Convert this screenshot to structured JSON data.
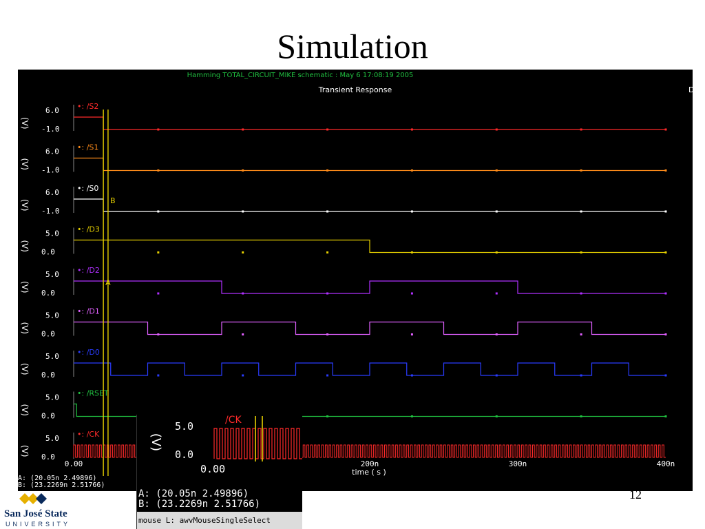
{
  "slide": {
    "title": "Simulation",
    "page_number": "12",
    "logo_name": "San José State",
    "logo_sub": "UNIVERSITY"
  },
  "window": {
    "header": "Hamming TOTAL_CIRCUIT_MIKE schematic : May  6 17:08:19 2005",
    "subtitle": "Transient Response",
    "xlabel": "time ( s )",
    "xticks": [
      "0.00",
      "200n",
      "300n",
      "400n"
    ],
    "ylabel": "(V)",
    "cursor_a_label": "A",
    "cursor_b_label": "B",
    "cursor_a": "A: (20.05n 2.49896)",
    "cursor_b": "B: (23.2269n 2.51766)",
    "edge_glyph": "D"
  },
  "zoom": {
    "ytick_top": "5.0",
    "ytick_bottom": "0.0",
    "xtick": "0.00",
    "ylabel": "(V)",
    "signal": "/CK",
    "cursor_a": "A: (20.05n 2.49896)",
    "cursor_b": "B: (23.2269n 2.51766)",
    "status": "mouse L: awvMouseSingleSelect"
  },
  "colors": {
    "S2": "#ff2a2a",
    "S1": "#ff8c1a",
    "S0": "#ffffff",
    "D3": "#e6d000",
    "D2": "#b030ff",
    "D1": "#e060ff",
    "D0": "#2a3cff",
    "RSET": "#20c040",
    "CK": "#ff2a2a",
    "cursor": "#e6d000"
  },
  "chart_data": {
    "type": "line",
    "title": "Transient Response",
    "xlabel": "time ( s )",
    "ylabel": "(V)",
    "xlim": [
      0,
      400
    ],
    "x_unit": "ns",
    "series": [
      {
        "name": "/S2",
        "ylim": [
          -1.0,
          6.0
        ],
        "yticks": [
          "6.0",
          "-1.0"
        ],
        "hi": 6.0,
        "lo": 0.0,
        "segments": [
          [
            0,
            20,
            1
          ],
          [
            20,
            400,
            0
          ]
        ]
      },
      {
        "name": "/S1",
        "ylim": [
          -1.0,
          6.0
        ],
        "yticks": [
          "6.0",
          "-1.0"
        ],
        "hi": 6.0,
        "lo": 0.0,
        "segments": [
          [
            0,
            20,
            1
          ],
          [
            20,
            400,
            0
          ]
        ]
      },
      {
        "name": "/S0",
        "ylim": [
          -1.0,
          6.0
        ],
        "yticks": [
          "6.0",
          "-1.0"
        ],
        "hi": 6.0,
        "lo": 0.0,
        "segments": [
          [
            0,
            20,
            1
          ],
          [
            20,
            400,
            0
          ]
        ]
      },
      {
        "name": "/D3",
        "ylim": [
          0.0,
          5.0
        ],
        "yticks": [
          "5.0",
          "0.0"
        ],
        "hi": 5.0,
        "lo": 0.0,
        "segments": [
          [
            0,
            200,
            1
          ],
          [
            200,
            400,
            0
          ]
        ]
      },
      {
        "name": "/D2",
        "ylim": [
          0.0,
          5.0
        ],
        "yticks": [
          "5.0",
          "0.0"
        ],
        "hi": 5.0,
        "lo": 0.0,
        "segments": [
          [
            0,
            100,
            1
          ],
          [
            100,
            200,
            0
          ],
          [
            200,
            300,
            1
          ],
          [
            300,
            400,
            0
          ]
        ]
      },
      {
        "name": "/D1",
        "ylim": [
          0.0,
          5.0
        ],
        "yticks": [
          "5.0",
          "0.0"
        ],
        "hi": 5.0,
        "lo": 0.0,
        "segments": [
          [
            0,
            50,
            1
          ],
          [
            50,
            100,
            0
          ],
          [
            100,
            150,
            1
          ],
          [
            150,
            200,
            0
          ],
          [
            200,
            250,
            1
          ],
          [
            250,
            300,
            0
          ],
          [
            300,
            350,
            1
          ],
          [
            350,
            400,
            0
          ]
        ]
      },
      {
        "name": "/D0",
        "ylim": [
          0.0,
          5.0
        ],
        "yticks": [
          "5.0",
          "0.0"
        ],
        "hi": 5.0,
        "lo": 0.0,
        "segments": [
          [
            0,
            25,
            1
          ],
          [
            25,
            50,
            0
          ],
          [
            50,
            75,
            1
          ],
          [
            75,
            100,
            0
          ],
          [
            100,
            125,
            1
          ],
          [
            125,
            150,
            0
          ],
          [
            150,
            175,
            1
          ],
          [
            175,
            200,
            0
          ],
          [
            200,
            225,
            1
          ],
          [
            225,
            250,
            0
          ],
          [
            250,
            275,
            1
          ],
          [
            275,
            300,
            0
          ],
          [
            300,
            325,
            1
          ],
          [
            325,
            350,
            0
          ],
          [
            350,
            375,
            1
          ],
          [
            375,
            400,
            0
          ]
        ]
      },
      {
        "name": "/RSET",
        "ylim": [
          0.0,
          5.0
        ],
        "yticks": [
          "5.0",
          "0.0"
        ],
        "hi": 5.0,
        "lo": 0.0,
        "segments": [
          [
            0,
            2,
            1
          ],
          [
            2,
            400,
            0
          ]
        ]
      },
      {
        "name": "/CK",
        "ylim": [
          0.0,
          5.0
        ],
        "yticks": [
          "5.0",
          "0.0"
        ],
        "hi": 5.0,
        "lo": 0.0,
        "period": 2.5
      }
    ],
    "cursors": [
      {
        "name": "A",
        "x": 20.05,
        "y": 2.49896
      },
      {
        "name": "B",
        "x": 23.2269,
        "y": 2.51766
      }
    ]
  }
}
